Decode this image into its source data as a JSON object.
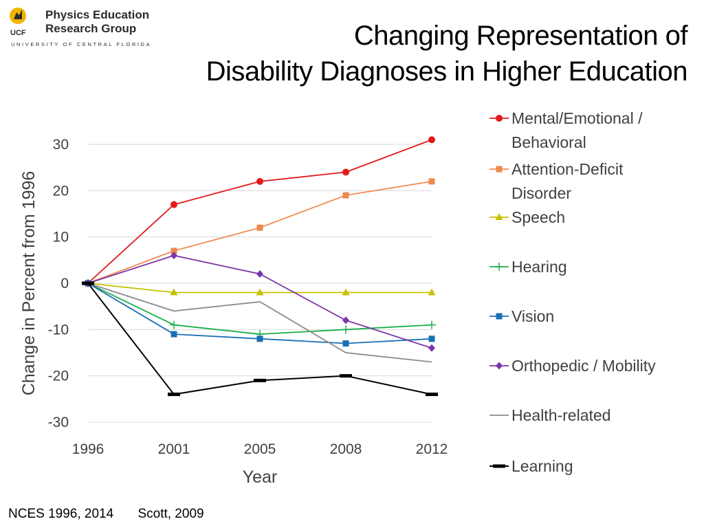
{
  "logo": {
    "line1": "Physics Education",
    "line2": "Research Group",
    "mark": "UCF",
    "subtitle": "UNIVERSITY OF CENTRAL FLORIDA"
  },
  "title": {
    "line1": "Changing Representation of",
    "line2": "Disability Diagnoses in Higher Education"
  },
  "source": {
    "ref1": "NCES 1996, 2014",
    "ref2": "Scott, 2009"
  },
  "chart_data": {
    "type": "line",
    "title": "",
    "xlabel": "Year",
    "ylabel": "Change in Percent from 1996",
    "categories": [
      "1996",
      "2001",
      "2005",
      "2008",
      "2012"
    ],
    "ylim": [
      -30,
      30
    ],
    "yticks": [
      30,
      20,
      10,
      0,
      -10,
      -20,
      -30
    ],
    "grid": true,
    "legend_position": "right",
    "series": [
      {
        "name": "Mental/Emotional / Behavioral",
        "legend_lines": [
          "Mental/Emotional /",
          "Behavioral"
        ],
        "color": "#e31a1c",
        "marker": "circle",
        "values": [
          0,
          17,
          22,
          24,
          31
        ]
      },
      {
        "name": "Attention-Deficit Disorder",
        "legend_lines": [
          "Attention-Deficit",
          "Disorder"
        ],
        "color": "#ee8a4d",
        "marker": "square",
        "values": [
          0,
          7,
          12,
          19,
          22
        ]
      },
      {
        "name": "Speech",
        "legend_lines": [
          "Speech"
        ],
        "color": "#c5c000",
        "marker": "triangle",
        "values": [
          0,
          -2,
          -2,
          -2,
          -2
        ]
      },
      {
        "name": "Hearing",
        "legend_lines": [
          "Hearing"
        ],
        "color": "#1aae4a",
        "marker": "plus",
        "values": [
          0,
          -9,
          -11,
          -10,
          -9
        ]
      },
      {
        "name": "Vision",
        "legend_lines": [
          "Vision"
        ],
        "color": "#1a6fb5",
        "marker": "square",
        "values": [
          0,
          -11,
          -12,
          -13,
          -12
        ]
      },
      {
        "name": "Orthopedic / Mobility",
        "legend_lines": [
          "Orthopedic / Mobility"
        ],
        "color": "#7b35a8",
        "marker": "diamond",
        "values": [
          0,
          6,
          2,
          -8,
          -14
        ]
      },
      {
        "name": "Health-related",
        "legend_lines": [
          "Health-related"
        ],
        "color": "#8c8c8c",
        "marker": "none",
        "values": [
          0,
          -6,
          -4,
          -15,
          -17
        ]
      },
      {
        "name": "Learning",
        "legend_lines": [
          "Learning"
        ],
        "color": "#000000",
        "marker": "dash",
        "values": [
          0,
          -24,
          -21,
          -20,
          -24
        ]
      }
    ]
  }
}
